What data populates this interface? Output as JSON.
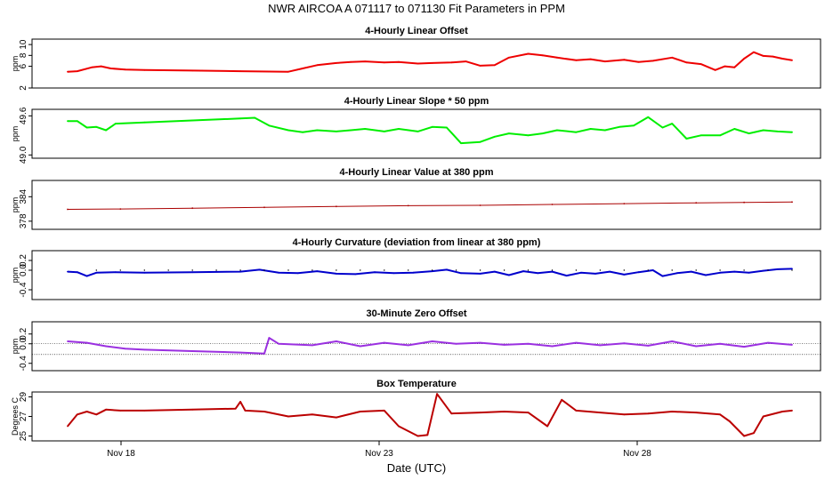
{
  "title": "NWR   AIRCOA A   071117 to 071130   Fit Parameters in PPM",
  "xlabel": "Date (UTC)",
  "x_ticks": [
    "Nov 18",
    "Nov 23",
    "Nov 28"
  ],
  "colors": {
    "offset": "#ee0000",
    "slope": "#00ee00",
    "value": "#aa0000",
    "curvature": "#0000cc",
    "zero": "#9a30e0",
    "temp": "#bb0000"
  },
  "chart_data": [
    {
      "type": "line",
      "title": "4-Hourly Linear Offset",
      "ylabel": "ppm",
      "ylim": [
        2,
        11
      ],
      "yticks": [
        2,
        6,
        8,
        10
      ],
      "xlim": [
        17.0,
        32.5
      ],
      "series": [
        {
          "values": [
            [
              17.4,
              5.0
            ],
            [
              17.6,
              5.1
            ],
            [
              17.9,
              5.8
            ],
            [
              18.1,
              6.0
            ],
            [
              18.3,
              5.6
            ],
            [
              18.6,
              5.4
            ],
            [
              19.0,
              5.3
            ],
            [
              20.0,
              5.2
            ],
            [
              21.0,
              5.1
            ],
            [
              22.0,
              5.0
            ],
            [
              22.3,
              5.6
            ],
            [
              22.6,
              6.2
            ],
            [
              23.0,
              6.6
            ],
            [
              23.3,
              6.8
            ],
            [
              23.6,
              6.9
            ],
            [
              24.0,
              6.7
            ],
            [
              24.3,
              6.8
            ],
            [
              24.7,
              6.5
            ],
            [
              25.0,
              6.6
            ],
            [
              25.4,
              6.7
            ],
            [
              25.7,
              6.9
            ],
            [
              26.0,
              6.1
            ],
            [
              26.3,
              6.2
            ],
            [
              26.6,
              7.6
            ],
            [
              27.0,
              8.3
            ],
            [
              27.3,
              8.0
            ],
            [
              27.6,
              7.6
            ],
            [
              28.0,
              7.1
            ],
            [
              28.3,
              7.3
            ],
            [
              28.6,
              6.9
            ],
            [
              29.0,
              7.2
            ],
            [
              29.3,
              6.8
            ],
            [
              29.6,
              7.0
            ],
            [
              30.0,
              7.6
            ],
            [
              30.3,
              6.7
            ],
            [
              30.6,
              6.4
            ],
            [
              30.9,
              5.3
            ],
            [
              31.1,
              6.0
            ],
            [
              31.3,
              5.8
            ],
            [
              31.5,
              7.4
            ],
            [
              31.7,
              8.6
            ],
            [
              31.9,
              7.9
            ],
            [
              32.1,
              7.8
            ],
            [
              32.3,
              7.4
            ],
            [
              32.5,
              7.1
            ]
          ]
        }
      ]
    },
    {
      "type": "line",
      "title": "4-Hourly Linear Slope * 50 ppm",
      "ylabel": "ppm",
      "ylim": [
        48.95,
        49.7
      ],
      "yticks": [
        49.0,
        49.6
      ],
      "xlim": [
        17.0,
        32.5
      ],
      "series": [
        {
          "values": [
            [
              17.4,
              49.52
            ],
            [
              17.6,
              49.52
            ],
            [
              17.8,
              49.42
            ],
            [
              18.0,
              49.43
            ],
            [
              18.2,
              49.38
            ],
            [
              18.4,
              49.48
            ],
            [
              19.0,
              49.5
            ],
            [
              20.0,
              49.53
            ],
            [
              21.0,
              49.56
            ],
            [
              21.3,
              49.57
            ],
            [
              21.6,
              49.45
            ],
            [
              22.0,
              49.38
            ],
            [
              22.3,
              49.35
            ],
            [
              22.6,
              49.38
            ],
            [
              23.0,
              49.36
            ],
            [
              23.3,
              49.38
            ],
            [
              23.6,
              49.4
            ],
            [
              24.0,
              49.36
            ],
            [
              24.3,
              49.4
            ],
            [
              24.7,
              49.36
            ],
            [
              25.0,
              49.43
            ],
            [
              25.3,
              49.42
            ],
            [
              25.6,
              49.18
            ],
            [
              26.0,
              49.2
            ],
            [
              26.3,
              49.28
            ],
            [
              26.6,
              49.33
            ],
            [
              27.0,
              49.3
            ],
            [
              27.3,
              49.33
            ],
            [
              27.6,
              49.38
            ],
            [
              28.0,
              49.35
            ],
            [
              28.3,
              49.4
            ],
            [
              28.6,
              49.38
            ],
            [
              28.9,
              49.43
            ],
            [
              29.2,
              49.45
            ],
            [
              29.5,
              49.58
            ],
            [
              29.8,
              49.42
            ],
            [
              30.0,
              49.48
            ],
            [
              30.3,
              49.25
            ],
            [
              30.6,
              49.3
            ],
            [
              31.0,
              49.3
            ],
            [
              31.3,
              49.4
            ],
            [
              31.6,
              49.33
            ],
            [
              31.9,
              49.38
            ],
            [
              32.2,
              49.36
            ],
            [
              32.5,
              49.35
            ]
          ]
        }
      ]
    },
    {
      "type": "line",
      "title": "4-Hourly Linear Value at 380 ppm",
      "ylabel": "ppm",
      "ylim": [
        376,
        388
      ],
      "yticks": [
        378,
        384
      ],
      "xlim": [
        17.0,
        32.5
      ],
      "series": [
        {
          "values": [
            [
              17.4,
              380.9
            ],
            [
              18.5,
              381.0
            ],
            [
              20.0,
              381.2
            ],
            [
              21.5,
              381.4
            ],
            [
              23.0,
              381.6
            ],
            [
              24.5,
              381.8
            ],
            [
              26.0,
              381.9
            ],
            [
              27.5,
              382.1
            ],
            [
              29.0,
              382.3
            ],
            [
              30.5,
              382.5
            ],
            [
              31.5,
              382.6
            ],
            [
              32.5,
              382.7
            ]
          ]
        }
      ]
    },
    {
      "type": "line",
      "title": "4-Hourly Curvature (deviation from linear at 380 ppm)",
      "ylabel": "ppm",
      "ylim": [
        -0.6,
        0.4
      ],
      "yticks": [
        -0.4,
        0.0,
        0.2
      ],
      "xlim": [
        17.0,
        32.5
      ],
      "series": [
        {
          "values": [
            [
              17.4,
              -0.03
            ],
            [
              17.6,
              -0.04
            ],
            [
              17.8,
              -0.12
            ],
            [
              18.0,
              -0.05
            ],
            [
              18.4,
              -0.04
            ],
            [
              19.0,
              -0.05
            ],
            [
              20.0,
              -0.04
            ],
            [
              21.0,
              -0.03
            ],
            [
              21.4,
              0.01
            ],
            [
              21.8,
              -0.05
            ],
            [
              22.2,
              -0.06
            ],
            [
              22.6,
              -0.02
            ],
            [
              23.0,
              -0.07
            ],
            [
              23.4,
              -0.08
            ],
            [
              23.8,
              -0.04
            ],
            [
              24.2,
              -0.06
            ],
            [
              24.6,
              -0.05
            ],
            [
              25.0,
              -0.02
            ],
            [
              25.3,
              0.01
            ],
            [
              25.6,
              -0.06
            ],
            [
              26.0,
              -0.07
            ],
            [
              26.3,
              -0.03
            ],
            [
              26.6,
              -0.1
            ],
            [
              26.9,
              -0.02
            ],
            [
              27.2,
              -0.06
            ],
            [
              27.5,
              -0.03
            ],
            [
              27.8,
              -0.11
            ],
            [
              28.1,
              -0.05
            ],
            [
              28.4,
              -0.07
            ],
            [
              28.7,
              -0.03
            ],
            [
              29.0,
              -0.09
            ],
            [
              29.3,
              -0.04
            ],
            [
              29.6,
              0.0
            ],
            [
              29.8,
              -0.12
            ],
            [
              30.1,
              -0.06
            ],
            [
              30.4,
              -0.03
            ],
            [
              30.7,
              -0.1
            ],
            [
              31.0,
              -0.05
            ],
            [
              31.3,
              -0.03
            ],
            [
              31.6,
              -0.05
            ],
            [
              31.9,
              -0.01
            ],
            [
              32.2,
              0.02
            ],
            [
              32.5,
              0.03
            ]
          ]
        }
      ]
    },
    {
      "type": "line",
      "title": "30-Minute Zero Offset",
      "ylabel": "ppm",
      "ylim": [
        -0.55,
        0.45
      ],
      "yticks": [
        -0.4,
        0.0,
        0.2
      ],
      "xlim": [
        17.0,
        32.5
      ],
      "series": [
        {
          "values": [
            [
              17.4,
              0.05
            ],
            [
              17.8,
              0.02
            ],
            [
              18.2,
              -0.05
            ],
            [
              18.6,
              -0.1
            ],
            [
              19.0,
              -0.12
            ],
            [
              20.0,
              -0.15
            ],
            [
              21.0,
              -0.18
            ],
            [
              21.5,
              -0.2
            ],
            [
              21.6,
              0.12
            ],
            [
              21.8,
              0.0
            ],
            [
              22.5,
              -0.03
            ],
            [
              23.0,
              0.05
            ],
            [
              23.5,
              -0.05
            ],
            [
              24.0,
              0.02
            ],
            [
              24.5,
              -0.03
            ],
            [
              25.0,
              0.05
            ],
            [
              25.5,
              0.0
            ],
            [
              26.0,
              0.02
            ],
            [
              26.5,
              -0.02
            ],
            [
              27.0,
              0.0
            ],
            [
              27.5,
              -0.05
            ],
            [
              28.0,
              0.02
            ],
            [
              28.5,
              -0.03
            ],
            [
              29.0,
              0.01
            ],
            [
              29.5,
              -0.04
            ],
            [
              30.0,
              0.05
            ],
            [
              30.5,
              -0.05
            ],
            [
              31.0,
              0.0
            ],
            [
              31.5,
              -0.06
            ],
            [
              32.0,
              0.02
            ],
            [
              32.5,
              -0.02
            ]
          ]
        }
      ],
      "reference_lines": [
        0.0,
        -0.22
      ]
    },
    {
      "type": "line",
      "title": "Box Temperature",
      "ylabel": "Degrees C",
      "ylim": [
        24.5,
        29.5
      ],
      "yticks": [
        25,
        27,
        29
      ],
      "xlim": [
        17.0,
        32.5
      ],
      "series": [
        {
          "values": [
            [
              17.4,
              26.0
            ],
            [
              17.6,
              27.2
            ],
            [
              17.8,
              27.5
            ],
            [
              18.0,
              27.2
            ],
            [
              18.2,
              27.7
            ],
            [
              18.5,
              27.6
            ],
            [
              19.0,
              27.6
            ],
            [
              20.0,
              27.7
            ],
            [
              20.9,
              27.8
            ],
            [
              21.0,
              28.5
            ],
            [
              21.1,
              27.6
            ],
            [
              21.5,
              27.5
            ],
            [
              22.0,
              27.0
            ],
            [
              22.5,
              27.2
            ],
            [
              23.0,
              26.9
            ],
            [
              23.5,
              27.5
            ],
            [
              24.0,
              27.6
            ],
            [
              24.3,
              26.0
            ],
            [
              24.7,
              25.0
            ],
            [
              24.9,
              25.1
            ],
            [
              25.1,
              29.3
            ],
            [
              25.4,
              27.3
            ],
            [
              26.0,
              27.4
            ],
            [
              26.5,
              27.5
            ],
            [
              27.0,
              27.4
            ],
            [
              27.4,
              26.0
            ],
            [
              27.7,
              28.7
            ],
            [
              28.0,
              27.6
            ],
            [
              28.5,
              27.4
            ],
            [
              29.0,
              27.2
            ],
            [
              29.5,
              27.3
            ],
            [
              30.0,
              27.5
            ],
            [
              30.5,
              27.4
            ],
            [
              31.0,
              27.2
            ],
            [
              31.2,
              26.5
            ],
            [
              31.5,
              25.0
            ],
            [
              31.7,
              25.3
            ],
            [
              31.9,
              27.0
            ],
            [
              32.3,
              27.5
            ],
            [
              32.5,
              27.6
            ]
          ]
        }
      ]
    }
  ]
}
